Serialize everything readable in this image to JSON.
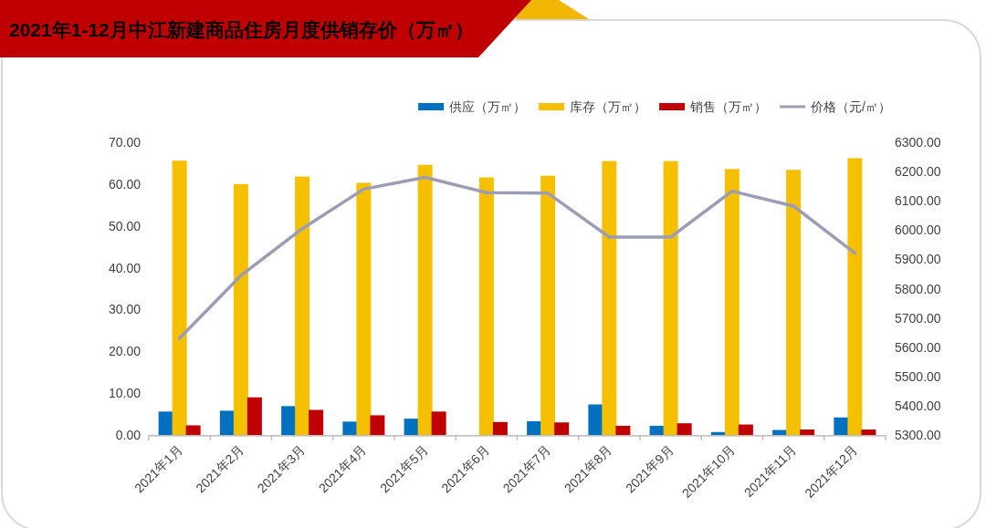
{
  "chart_data": {
    "type": "bar",
    "title": "2021年1-12月中江新建商品住房月度供销存价（万㎡）",
    "categories": [
      "2021年1月",
      "2021年2月",
      "2021年3月",
      "2021年4月",
      "2021年5月",
      "2021年6月",
      "2021年7月",
      "2021年8月",
      "2021年9月",
      "2021年10月",
      "2021年11月",
      "2021年12月"
    ],
    "series": [
      {
        "name": "供应（万㎡）",
        "color": "#0070c0",
        "values": [
          5.6,
          5.8,
          6.9,
          3.2,
          3.9,
          null,
          3.3,
          7.3,
          2.2,
          0.7,
          1.2,
          4.2
        ]
      },
      {
        "name": "库存（万㎡）",
        "color": "#f5c000",
        "values": [
          65.6,
          60.0,
          61.8,
          60.3,
          64.6,
          61.6,
          62.0,
          65.5,
          65.5,
          63.6,
          63.4,
          66.2
        ]
      },
      {
        "name": "销售（万㎡）",
        "color": "#c00000",
        "values": [
          2.3,
          9.0,
          6.0,
          4.7,
          5.6,
          3.1,
          3.0,
          2.2,
          2.8,
          2.5,
          1.3,
          1.3
        ]
      },
      {
        "name": "价格（元/㎡）",
        "type": "line",
        "axis": "y2",
        "color": "#9c9cb4",
        "values": [
          5630,
          5845,
          6005,
          6140,
          6180,
          6128,
          6126,
          5976,
          5976,
          6133,
          6082,
          5921
        ]
      }
    ],
    "ylim": [
      0,
      70
    ],
    "yticks": [
      {
        "value": 0,
        "label": "0.00"
      },
      {
        "value": 10,
        "label": "10.00"
      },
      {
        "value": 20,
        "label": "20.00"
      },
      {
        "value": 30,
        "label": "30.00"
      },
      {
        "value": 40,
        "label": "40.00"
      },
      {
        "value": 50,
        "label": "50.00"
      },
      {
        "value": 60,
        "label": "60.00"
      },
      {
        "value": 70,
        "label": "70.00"
      }
    ],
    "y2lim": [
      5300,
      6300
    ],
    "y2ticks": [
      {
        "value": 5300,
        "label": "5300.00"
      },
      {
        "value": 5400,
        "label": "5400.00"
      },
      {
        "value": 5500,
        "label": "5500.00"
      },
      {
        "value": 5600,
        "label": "5600.00"
      },
      {
        "value": 5700,
        "label": "5700.00"
      },
      {
        "value": 5800,
        "label": "5800.00"
      },
      {
        "value": 5900,
        "label": "5900.00"
      },
      {
        "value": 6000,
        "label": "6000.00"
      },
      {
        "value": 6100,
        "label": "6100.00"
      },
      {
        "value": 6200,
        "label": "6200.00"
      },
      {
        "value": 6300,
        "label": "6300.00"
      }
    ],
    "legend": "top right"
  }
}
